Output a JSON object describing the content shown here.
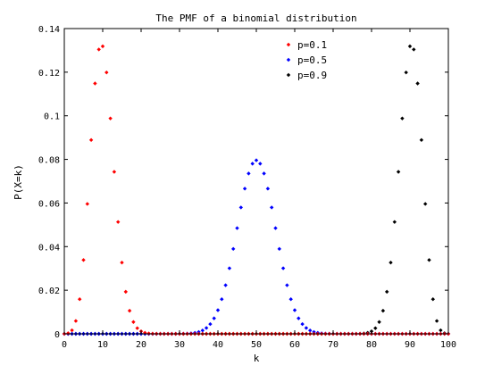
{
  "chart_data": {
    "type": "scatter",
    "title": "The PMF of a binomial distribution",
    "xlabel": "k",
    "ylabel": "P(X=k)",
    "xlim": [
      0,
      100
    ],
    "ylim": [
      0,
      0.14
    ],
    "xticks": [
      "0",
      "10",
      "20",
      "30",
      "40",
      "50",
      "60",
      "70",
      "80",
      "90",
      "100"
    ],
    "yticks": [
      "0",
      "0.02",
      "0.04",
      "0.06",
      "0.08",
      "0.1",
      "0.12",
      "0.14"
    ],
    "grid": false,
    "legend_position": "top-right",
    "n": 100,
    "series": [
      {
        "name": "p=0.1",
        "p": 0.1,
        "color": "#ff0000"
      },
      {
        "name": "p=0.5",
        "p": 0.5,
        "color": "#0000ff"
      },
      {
        "name": "p=0.9",
        "p": 0.9,
        "color": "#000000"
      }
    ]
  }
}
